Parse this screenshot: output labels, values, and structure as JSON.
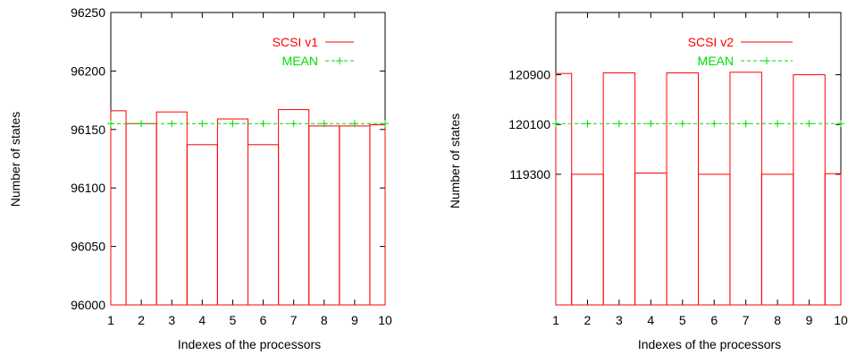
{
  "chart_data": [
    {
      "type": "bar",
      "ylabel": "Number of states",
      "xlabel": "Indexes of the processors",
      "x_ticks": [
        "1",
        "2",
        "3",
        "4",
        "5",
        "6",
        "7",
        "8",
        "9",
        "10"
      ],
      "ylim": [
        96000,
        96250
      ],
      "y_ticks": [
        96000,
        96050,
        96100,
        96150,
        96200,
        96250
      ],
      "y_tick_labels": [
        "96000",
        "96050",
        "96100",
        "96150",
        "96200",
        "96250"
      ],
      "legend_position": "top-right",
      "grid": false,
      "series": [
        {
          "name": "SCSI v1",
          "style": "boxes",
          "color": "#ff0000",
          "values": [
            96166,
            96155,
            96165,
            96137,
            96159,
            96137,
            96167,
            96153,
            96153,
            96154
          ]
        },
        {
          "name": "MEAN",
          "style": "dashed-line-with-plus",
          "color": "#00dd00",
          "values": [
            96155,
            96155,
            96155,
            96155,
            96155,
            96155,
            96155,
            96155,
            96155,
            96155
          ]
        }
      ]
    },
    {
      "type": "bar",
      "ylabel": "Number of states",
      "xlabel": "Indexes of the processors",
      "x_ticks": [
        "1",
        "2",
        "3",
        "4",
        "5",
        "6",
        "7",
        "8",
        "9",
        "10"
      ],
      "ylim": [
        117200,
        121900
      ],
      "y_ticks": [
        119300,
        120100,
        120900
      ],
      "y_tick_labels": [
        "119300",
        "120100",
        "120900"
      ],
      "legend_position": "top-right",
      "grid": false,
      "series": [
        {
          "name": "SCSI v2",
          "style": "boxes",
          "color": "#ff0000",
          "values": [
            120920,
            119300,
            120930,
            119320,
            120930,
            119300,
            120940,
            119300,
            120900,
            119310
          ]
        },
        {
          "name": "MEAN",
          "style": "dashed-line-with-plus",
          "color": "#00dd00",
          "values": [
            120115,
            120115,
            120115,
            120115,
            120115,
            120115,
            120115,
            120115,
            120115,
            120115
          ]
        }
      ]
    }
  ]
}
